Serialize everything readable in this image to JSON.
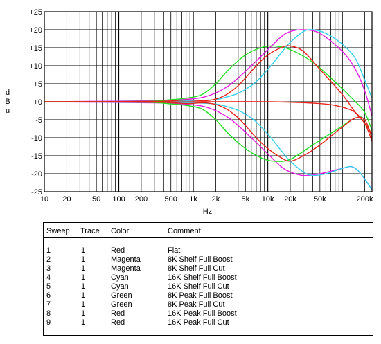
{
  "chart_data": {
    "type": "line",
    "ylabel": "dBu",
    "xlabel": "Hz",
    "x_scale": "log",
    "xlim": [
      10,
      250000
    ],
    "ylim": [
      -25,
      25
    ],
    "grid": true,
    "x_ticks": [
      {
        "v": 10,
        "label": "10"
      },
      {
        "v": 20,
        "label": "20"
      },
      {
        "v": 50,
        "label": "50"
      },
      {
        "v": 100,
        "label": "100"
      },
      {
        "v": 200,
        "label": "200"
      },
      {
        "v": 500,
        "label": "500"
      },
      {
        "v": 1000,
        "label": "1k"
      },
      {
        "v": 2000,
        "label": "2k"
      },
      {
        "v": 5000,
        "label": "5k"
      },
      {
        "v": 10000,
        "label": "10k"
      },
      {
        "v": 20000,
        "label": "20k"
      },
      {
        "v": 50000,
        "label": "50k"
      },
      {
        "v": 200000,
        "label": "200k"
      }
    ],
    "y_ticks": [
      {
        "v": 25,
        "label": "+25"
      },
      {
        "v": 20,
        "label": "+20"
      },
      {
        "v": 15,
        "label": "+15"
      },
      {
        "v": 10,
        "label": "+10"
      },
      {
        "v": 5,
        "label": "+5"
      },
      {
        "v": 0,
        "label": "+0"
      },
      {
        "v": -5,
        "label": "-5"
      },
      {
        "v": -10,
        "label": "-10"
      },
      {
        "v": -15,
        "label": "-15"
      },
      {
        "v": -20,
        "label": "-20"
      },
      {
        "v": -25,
        "label": "-25"
      }
    ],
    "series": [
      {
        "sweep": "1",
        "color": "#e8231b",
        "points": [
          [
            10,
            0
          ],
          [
            1000,
            0
          ],
          [
            10000,
            0
          ],
          [
            50000,
            -0.5
          ],
          [
            100000,
            -1.5
          ],
          [
            150000,
            -3
          ],
          [
            200000,
            -6
          ],
          [
            250000,
            -9
          ]
        ]
      },
      {
        "sweep": "2",
        "color": "#e61ee6",
        "points": [
          [
            10,
            0
          ],
          [
            300,
            0.3
          ],
          [
            700,
            0.6
          ],
          [
            1500,
            1.5
          ],
          [
            3000,
            4.5
          ],
          [
            6000,
            10
          ],
          [
            10000,
            14.5
          ],
          [
            15000,
            18
          ],
          [
            20000,
            19.5
          ],
          [
            30000,
            20
          ],
          [
            50000,
            19
          ],
          [
            100000,
            14
          ],
          [
            150000,
            9
          ],
          [
            200000,
            3
          ],
          [
            250000,
            -4
          ]
        ]
      },
      {
        "sweep": "3",
        "color": "#e61ee6",
        "points": [
          [
            10,
            0
          ],
          [
            300,
            -0.3
          ],
          [
            700,
            -0.6
          ],
          [
            1500,
            -1.5
          ],
          [
            3000,
            -4.5
          ],
          [
            6000,
            -10
          ],
          [
            10000,
            -14.5
          ],
          [
            15000,
            -18
          ],
          [
            20000,
            -19.5
          ],
          [
            30000,
            -20.5
          ],
          [
            50000,
            -20
          ],
          [
            100000,
            -18.5
          ],
          [
            130000,
            -18
          ],
          [
            160000,
            -19
          ],
          [
            200000,
            -21.5
          ],
          [
            250000,
            -24.5
          ]
        ]
      },
      {
        "sweep": "4",
        "color": "#35d0f0",
        "points": [
          [
            10,
            0
          ],
          [
            1000,
            0.3
          ],
          [
            3000,
            1.5
          ],
          [
            6000,
            4.5
          ],
          [
            10000,
            9
          ],
          [
            15000,
            13.5
          ],
          [
            20000,
            16.5
          ],
          [
            30000,
            19.5
          ],
          [
            40000,
            20
          ],
          [
            60000,
            19
          ],
          [
            100000,
            16
          ],
          [
            150000,
            12
          ],
          [
            200000,
            6
          ],
          [
            250000,
            1
          ]
        ]
      },
      {
        "sweep": "5",
        "color": "#35d0f0",
        "points": [
          [
            10,
            0
          ],
          [
            1000,
            -0.3
          ],
          [
            3000,
            -1.5
          ],
          [
            6000,
            -4.5
          ],
          [
            10000,
            -9
          ],
          [
            15000,
            -13.5
          ],
          [
            20000,
            -16.5
          ],
          [
            30000,
            -19.5
          ],
          [
            40000,
            -20.5
          ],
          [
            60000,
            -20
          ],
          [
            100000,
            -18.5
          ],
          [
            130000,
            -18
          ],
          [
            160000,
            -19
          ],
          [
            200000,
            -21.5
          ],
          [
            250000,
            -24.5
          ]
        ]
      },
      {
        "sweep": "6",
        "color": "#22e022",
        "points": [
          [
            10,
            0
          ],
          [
            200,
            0.1
          ],
          [
            500,
            0.6
          ],
          [
            800,
            1
          ],
          [
            1300,
            2
          ],
          [
            2000,
            5
          ],
          [
            3000,
            9
          ],
          [
            5000,
            13
          ],
          [
            8000,
            15
          ],
          [
            12000,
            15.5
          ],
          [
            20000,
            14.5
          ],
          [
            40000,
            11
          ],
          [
            80000,
            5.5
          ],
          [
            150000,
            0
          ],
          [
            200000,
            -3
          ],
          [
            250000,
            -8
          ]
        ]
      },
      {
        "sweep": "7",
        "color": "#22e022",
        "points": [
          [
            10,
            0
          ],
          [
            200,
            -0.1
          ],
          [
            500,
            -0.6
          ],
          [
            800,
            -1
          ],
          [
            1300,
            -2
          ],
          [
            2000,
            -5
          ],
          [
            3000,
            -9
          ],
          [
            5000,
            -13
          ],
          [
            8000,
            -15.5
          ],
          [
            12000,
            -16.5
          ],
          [
            20000,
            -16
          ],
          [
            40000,
            -12
          ],
          [
            80000,
            -8
          ],
          [
            150000,
            -4.5
          ],
          [
            200000,
            -5
          ],
          [
            250000,
            -10
          ]
        ]
      },
      {
        "sweep": "8",
        "color": "#e8231b",
        "points": [
          [
            10,
            0
          ],
          [
            300,
            0.1
          ],
          [
            800,
            0.5
          ],
          [
            1500,
            0.3
          ],
          [
            2500,
            1.5
          ],
          [
            4000,
            4.5
          ],
          [
            7000,
            10
          ],
          [
            10000,
            13
          ],
          [
            15000,
            15
          ],
          [
            20000,
            15.5
          ],
          [
            30000,
            14
          ],
          [
            50000,
            9
          ],
          [
            100000,
            2
          ],
          [
            150000,
            -3
          ],
          [
            200000,
            -6
          ],
          [
            250000,
            -11
          ]
        ]
      },
      {
        "sweep": "9",
        "color": "#e8231b",
        "points": [
          [
            10,
            0
          ],
          [
            300,
            -0.1
          ],
          [
            800,
            -0.5
          ],
          [
            1500,
            -0.3
          ],
          [
            2500,
            -1.5
          ],
          [
            4000,
            -4.5
          ],
          [
            7000,
            -10
          ],
          [
            10000,
            -13
          ],
          [
            15000,
            -15.5
          ],
          [
            20000,
            -16.5
          ],
          [
            30000,
            -15
          ],
          [
            50000,
            -12
          ],
          [
            100000,
            -7
          ],
          [
            150000,
            -4.5
          ],
          [
            200000,
            -5
          ],
          [
            250000,
            -10
          ]
        ]
      }
    ]
  },
  "legend": {
    "headers": {
      "sweep": "Sweep",
      "trace": "Trace",
      "color": "Color",
      "comment": "Comment"
    },
    "rows": [
      {
        "sweep": "1",
        "trace": "1",
        "color": "Red",
        "comment": "Flat"
      },
      {
        "sweep": "2",
        "trace": "1",
        "color": "Magenta",
        "comment": "8K Shelf Full Boost"
      },
      {
        "sweep": "3",
        "trace": "1",
        "color": "Magenta",
        "comment": "8K Shelf Full Cut"
      },
      {
        "sweep": "4",
        "trace": "1",
        "color": "Cyan",
        "comment": "16K Shelf Full Boost"
      },
      {
        "sweep": "5",
        "trace": "1",
        "color": "Cyan",
        "comment": "16K Shelf Full Cut"
      },
      {
        "sweep": "6",
        "trace": "1",
        "color": "Green",
        "comment": "8K Peak Full Boost"
      },
      {
        "sweep": "7",
        "trace": "1",
        "color": "Green",
        "comment": "8K Peak Full Cut"
      },
      {
        "sweep": "8",
        "trace": "1",
        "color": "Red",
        "comment": "16K Peak Full Boost"
      },
      {
        "sweep": "9",
        "trace": "1",
        "color": "Red",
        "comment": "16K Peak Full Cut"
      }
    ]
  }
}
